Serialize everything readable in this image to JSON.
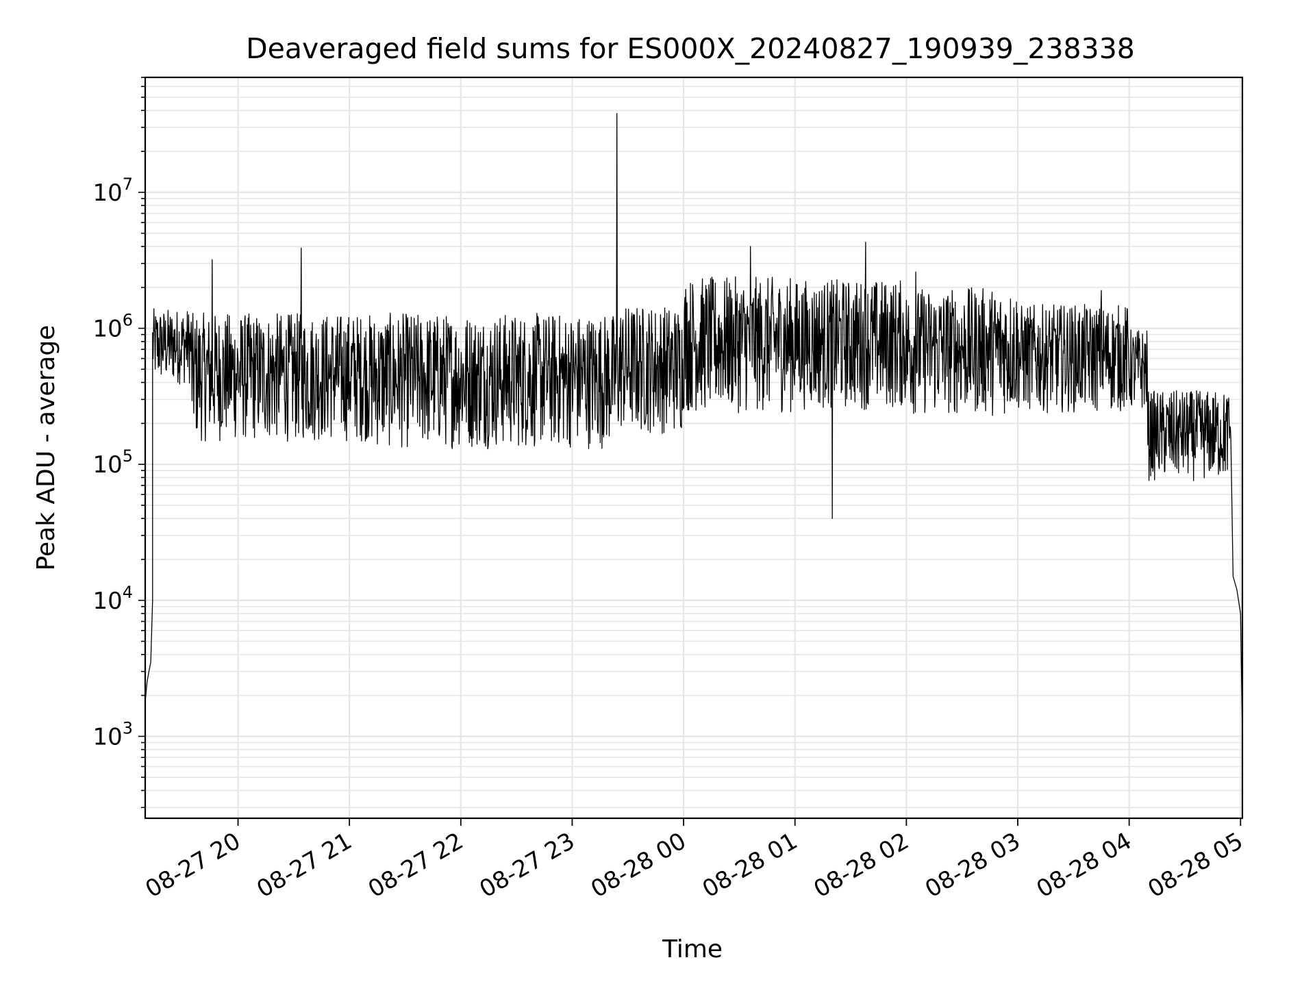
{
  "chart_data": {
    "type": "line",
    "title": "Deaveraged field sums for ES000X_20240827_190939_238338",
    "xlabel": "Time",
    "ylabel": "Peak ADU - average",
    "y_scale": "log",
    "ylim": [
      250,
      70000000
    ],
    "xlim": [
      "2024-08-27 19:10",
      "2024-08-28 05:01"
    ],
    "grid": true,
    "line_color": "#000000",
    "grid_color": "#e6e6e6",
    "x_ticks": [
      {
        "label": "08-27 20",
        "time": "2024-08-27 20:00"
      },
      {
        "label": "08-27 21",
        "time": "2024-08-27 21:00"
      },
      {
        "label": "08-27 22",
        "time": "2024-08-27 22:00"
      },
      {
        "label": "08-27 23",
        "time": "2024-08-27 23:00"
      },
      {
        "label": "08-28 00",
        "time": "2024-08-28 00:00"
      },
      {
        "label": "08-28 01",
        "time": "2024-08-28 01:00"
      },
      {
        "label": "08-28 02",
        "time": "2024-08-28 02:00"
      },
      {
        "label": "08-28 03",
        "time": "2024-08-28 03:00"
      },
      {
        "label": "08-28 04",
        "time": "2024-08-28 04:00"
      },
      {
        "label": "08-28 05",
        "time": "2024-08-28 05:00"
      }
    ],
    "y_ticks": [
      {
        "base": "10",
        "exp": "3",
        "value": 1000
      },
      {
        "base": "10",
        "exp": "4",
        "value": 10000
      },
      {
        "base": "10",
        "exp": "5",
        "value": 100000
      },
      {
        "base": "10",
        "exp": "6",
        "value": 1000000
      },
      {
        "base": "10",
        "exp": "7",
        "value": 10000000
      }
    ],
    "series": [
      {
        "x": [
          "2024-08-27 19:10",
          "2024-08-27 19:11",
          "2024-08-27 19:12",
          "2024-08-27 19:13",
          "2024-08-27 19:14",
          "2024-08-27 19:15",
          "2024-08-27 19:16",
          "2024-08-27 19:17",
          "2024-08-27 19:18",
          "2024-08-27 19:19",
          "2024-08-27 19:20",
          "2024-08-27 19:21",
          "2024-08-27 19:22",
          "2024-08-27 19:23",
          "2024-08-27 19:25",
          "2024-08-27 19:28",
          "2024-08-27 19:31",
          "2024-08-27 19:35",
          "2024-08-27 19:40",
          "2024-08-27 19:45",
          "2024-08-27 19:50",
          "2024-08-27 19:55",
          "2024-08-27 20:00",
          "2024-08-27 20:10",
          "2024-08-27 20:20",
          "2024-08-27 20:35",
          "2024-08-27 20:45",
          "2024-08-27 21:00",
          "2024-08-27 21:10",
          "2024-08-27 21:30",
          "2024-08-27 22:00",
          "2024-08-27 22:30",
          "2024-08-27 23:00",
          "2024-08-27 23:20",
          "2024-08-27 23:25",
          "2024-08-27 23:26",
          "2024-08-27 23:27",
          "2024-08-27 23:30",
          "2024-08-27 23:45",
          "2024-08-28 00:00",
          "2024-08-28 00:15",
          "2024-08-28 00:30",
          "2024-08-28 00:37",
          "2024-08-28 00:45",
          "2024-08-28 01:00",
          "2024-08-28 01:15",
          "2024-08-28 01:20",
          "2024-08-28 01:30",
          "2024-08-28 01:38",
          "2024-08-28 01:45",
          "2024-08-28 02:00",
          "2024-08-28 02:30",
          "2024-08-28 03:00",
          "2024-08-28 03:30",
          "2024-08-28 03:45",
          "2024-08-28 04:00",
          "2024-08-28 04:05",
          "2024-08-28 04:10",
          "2024-08-28 04:20",
          "2024-08-28 04:30",
          "2024-08-28 04:35",
          "2024-08-28 04:40",
          "2024-08-28 04:45",
          "2024-08-28 04:50",
          "2024-08-28 04:53",
          "2024-08-28 04:56",
          "2024-08-28 04:58",
          "2024-08-28 05:00",
          "2024-08-28 05:01"
        ],
        "y": [
          1800,
          2500,
          3000,
          3500,
          10000,
          15000,
          20000,
          100000,
          700000,
          1200000,
          1300000,
          1000000,
          700000,
          600000,
          500000,
          450000,
          400000,
          350000,
          300000,
          280000,
          260000,
          240000,
          220000,
          200000,
          220000,
          180000,
          190000,
          150000,
          160000,
          200000,
          190000,
          180000,
          160000,
          160000,
          150000,
          38000000,
          300000,
          300000,
          280000,
          350000,
          450000,
          500000,
          500000,
          520000,
          500000,
          550000,
          450000,
          520000,
          600000,
          520000,
          520000,
          500000,
          480000,
          470000,
          450000,
          450000,
          400000,
          300000,
          180000,
          150000,
          130000,
          100000,
          80000,
          200000,
          60000,
          15000,
          12000,
          8000,
          1000
        ]
      }
    ],
    "noise_bands": [
      {
        "start": "2024-08-27 19:14",
        "end": "2024-08-27 19:35",
        "low": 250000,
        "high": 1400000
      },
      {
        "start": "2024-08-27 19:35",
        "end": "2024-08-27 21:10",
        "low": 70000,
        "high": 1300000
      },
      {
        "start": "2024-08-27 21:10",
        "end": "2024-08-27 23:25",
        "low": 60000,
        "high": 1300000
      },
      {
        "start": "2024-08-27 23:25",
        "end": "2024-08-28 00:00",
        "low": 80000,
        "high": 1500000
      },
      {
        "start": "2024-08-28 00:00",
        "end": "2024-08-28 01:00",
        "low": 110000,
        "high": 2400000
      },
      {
        "start": "2024-08-28 01:00",
        "end": "2024-08-28 02:00",
        "low": 120000,
        "high": 2300000
      },
      {
        "start": "2024-08-28 02:00",
        "end": "2024-08-28 03:00",
        "low": 110000,
        "high": 2000000
      },
      {
        "start": "2024-08-28 03:00",
        "end": "2024-08-28 04:00",
        "low": 130000,
        "high": 1500000
      },
      {
        "start": "2024-08-28 04:00",
        "end": "2024-08-28 04:10",
        "low": 150000,
        "high": 1000000
      },
      {
        "start": "2024-08-28 04:10",
        "end": "2024-08-28 04:55",
        "low": 45000,
        "high": 350000
      }
    ],
    "spikes": [
      {
        "time": "2024-08-27 19:46",
        "value": 3200000
      },
      {
        "time": "2024-08-27 20:34",
        "value": 3900000
      },
      {
        "time": "2024-08-27 23:24",
        "value": 38000000
      },
      {
        "time": "2024-08-28 00:36",
        "value": 4000000
      },
      {
        "time": "2024-08-28 01:20",
        "value": 40000
      },
      {
        "time": "2024-08-28 01:38",
        "value": 4300000
      },
      {
        "time": "2024-08-28 02:05",
        "value": 2600000
      },
      {
        "time": "2024-08-28 03:45",
        "value": 1900000
      }
    ]
  }
}
